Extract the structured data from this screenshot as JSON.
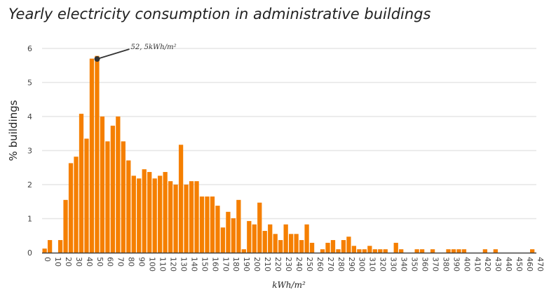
{
  "chart_data": {
    "type": "bar",
    "title": "Yearly electricity consumption in administrative buildings",
    "xlabel": "kWh/m²",
    "ylabel": "% buildings",
    "xlim": [
      0,
      470
    ],
    "ylim": [
      0,
      6
    ],
    "bin_width": 5,
    "x_ticks": [
      0,
      10,
      20,
      30,
      40,
      50,
      60,
      70,
      80,
      90,
      100,
      110,
      120,
      130,
      140,
      150,
      160,
      170,
      180,
      190,
      200,
      210,
      220,
      230,
      240,
      250,
      260,
      270,
      280,
      290,
      300,
      310,
      320,
      330,
      340,
      350,
      360,
      370,
      380,
      390,
      400,
      410,
      420,
      430,
      440,
      450,
      460,
      470
    ],
    "y_ticks": [
      0,
      1,
      2,
      3,
      4,
      5,
      6
    ],
    "grid": true,
    "bar_color": "#f57f00",
    "bin_starts": [
      0,
      5,
      10,
      15,
      20,
      25,
      30,
      35,
      40,
      45,
      50,
      55,
      60,
      65,
      70,
      75,
      80,
      85,
      90,
      95,
      100,
      105,
      110,
      115,
      120,
      125,
      130,
      135,
      140,
      145,
      150,
      155,
      160,
      165,
      170,
      175,
      180,
      185,
      190,
      195,
      200,
      205,
      210,
      215,
      220,
      225,
      230,
      235,
      240,
      245,
      250,
      255,
      260,
      265,
      270,
      275,
      280,
      285,
      290,
      295,
      300,
      305,
      310,
      315,
      320,
      325,
      330,
      335,
      340,
      345,
      350,
      355,
      360,
      365,
      370,
      375,
      380,
      385,
      390,
      395,
      400,
      405,
      410,
      415,
      420,
      425,
      430,
      435,
      440,
      445,
      450,
      455,
      460,
      465
    ],
    "values": [
      0.12,
      0.37,
      0,
      0.37,
      1.55,
      2.63,
      2.82,
      4.08,
      3.35,
      5.7,
      5.78,
      4.0,
      3.27,
      3.73,
      4.0,
      3.27,
      2.71,
      2.26,
      2.18,
      2.45,
      2.37,
      2.18,
      2.26,
      2.37,
      2.1,
      2.0,
      3.17,
      2.0,
      2.1,
      2.1,
      1.65,
      1.65,
      1.65,
      1.38,
      0.74,
      1.2,
      1.01,
      1.55,
      0.1,
      0.93,
      0.83,
      1.47,
      0.64,
      0.83,
      0.55,
      0.37,
      0.83,
      0.55,
      0.55,
      0.37,
      0.83,
      0.29,
      0,
      0.1,
      0.29,
      0.37,
      0.1,
      0.37,
      0.47,
      0.2,
      0.1,
      0.1,
      0.2,
      0.1,
      0.1,
      0.1,
      0,
      0.29,
      0.1,
      0,
      0,
      0.1,
      0.1,
      0,
      0.1,
      0,
      0,
      0.1,
      0.1,
      0.1,
      0.1,
      0,
      0,
      0,
      0.1,
      0,
      0.1,
      0,
      0,
      0,
      0,
      0,
      0,
      0.1
    ],
    "annotation": {
      "text": "52, 5kWh/m²",
      "x": 52.5,
      "y": 5.69
    }
  }
}
